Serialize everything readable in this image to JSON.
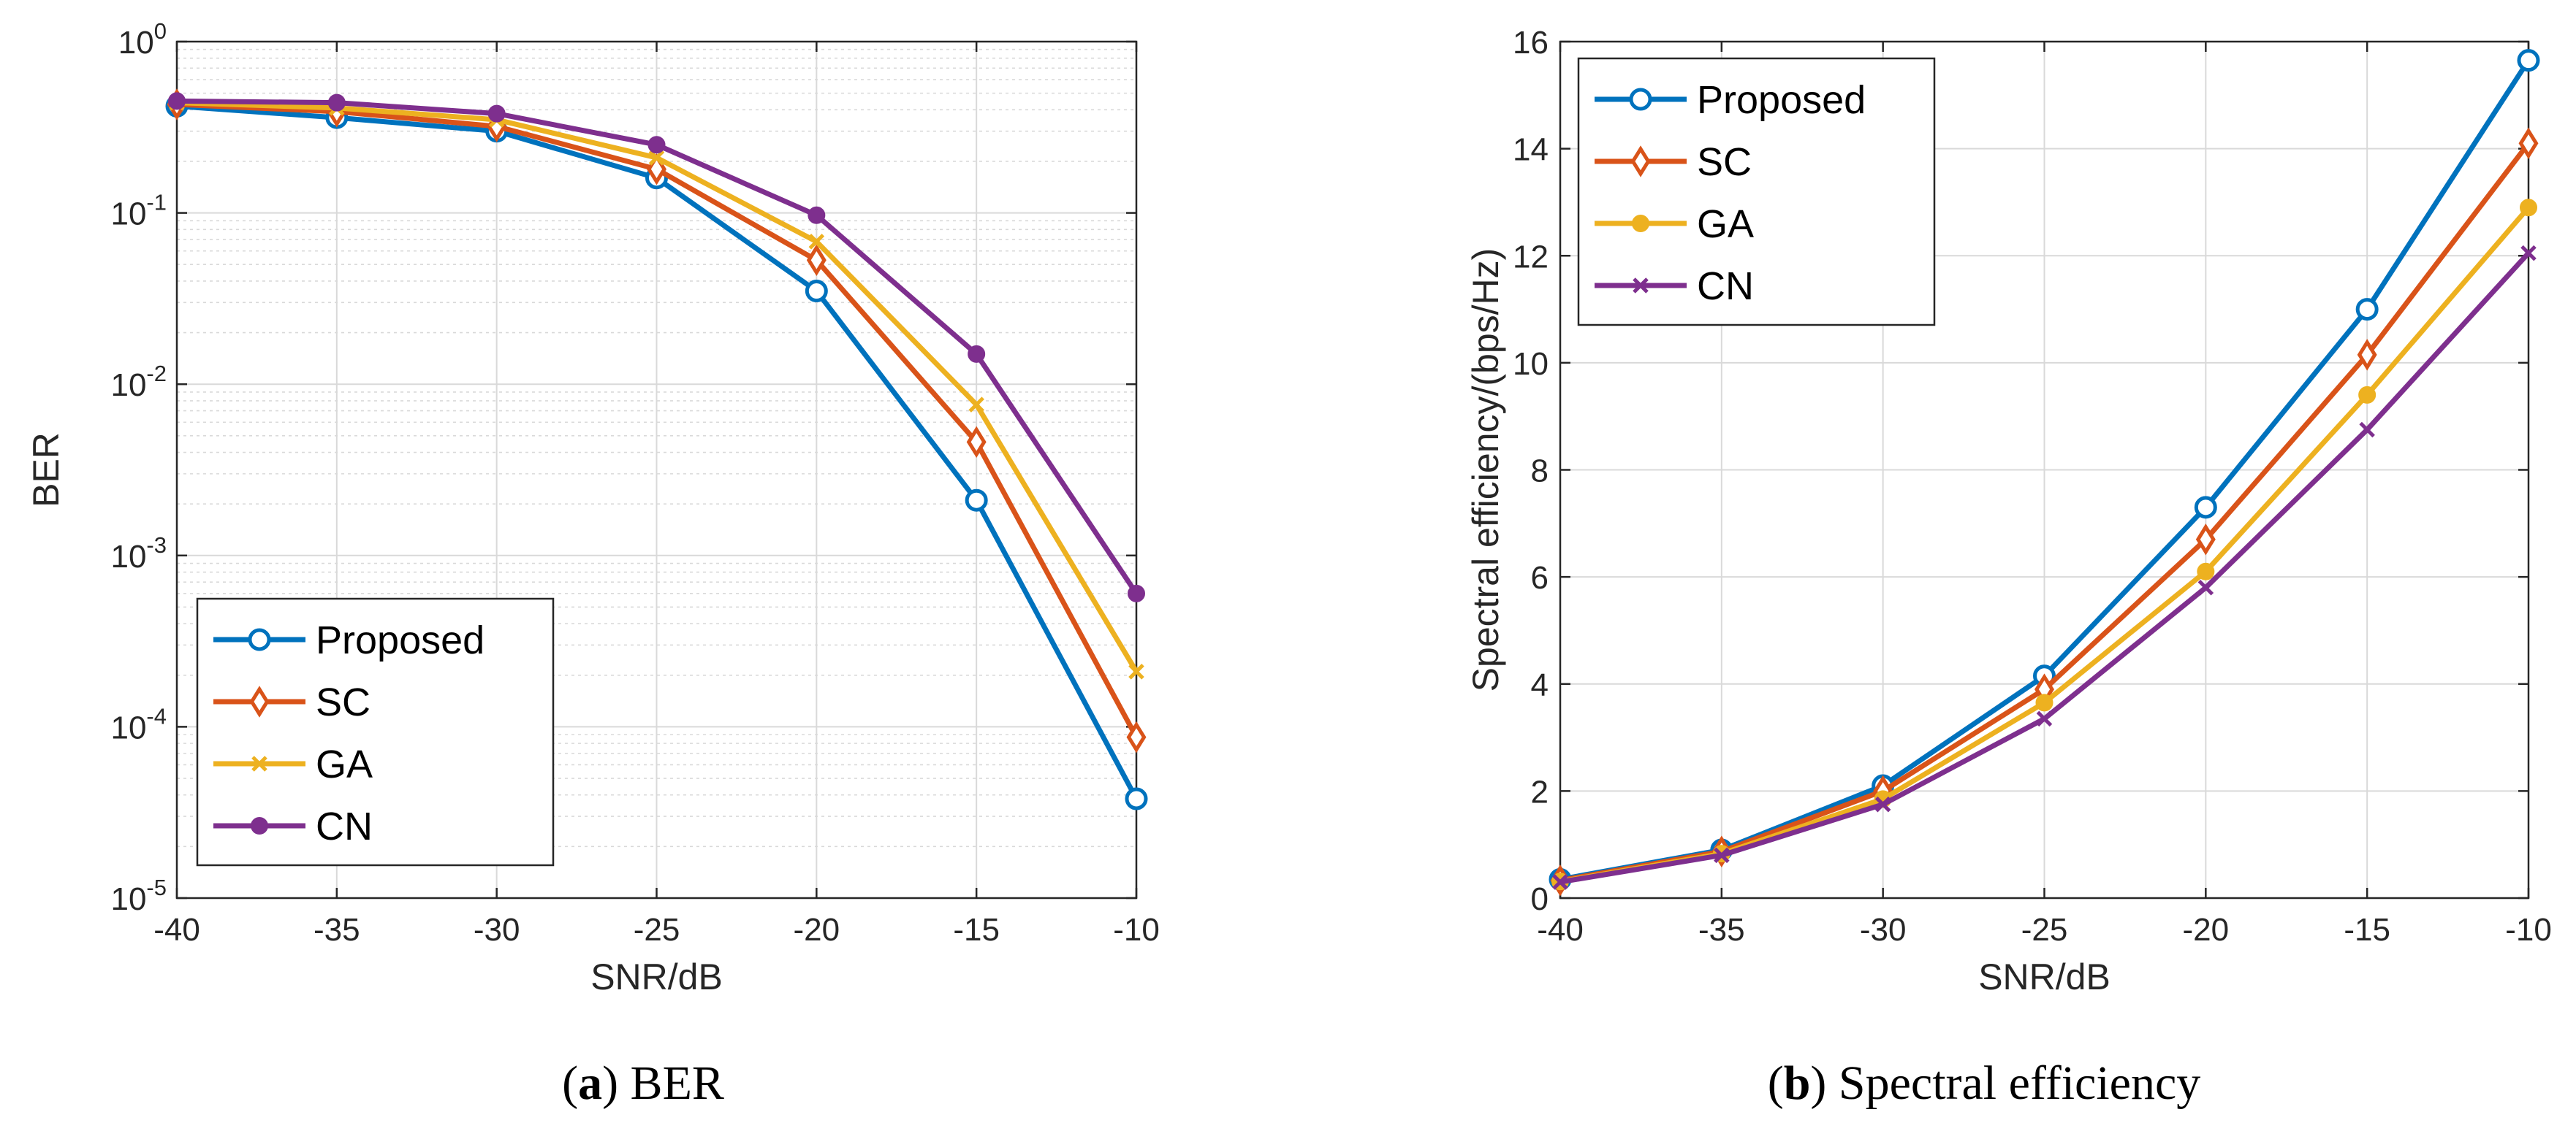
{
  "chart_data": [
    {
      "id": "ber",
      "type": "line",
      "yscale": "log",
      "caption_letter": "a",
      "caption_text": "BER",
      "xlabel": "SNR/dB",
      "ylabel": "BER",
      "xlim": [
        -40,
        -10
      ],
      "ylim_exp": [
        -5,
        0
      ],
      "grid": true,
      "legend_position": "bottom-left",
      "x": [
        -40,
        -35,
        -30,
        -25,
        -20,
        -15,
        -10
      ],
      "xticks": [
        "-40",
        "-35",
        "-30",
        "-25",
        "-20",
        "-15",
        "-10"
      ],
      "yticks": [
        {
          "exp": -5,
          "base": "10",
          "sup": "-5"
        },
        {
          "exp": -4,
          "base": "10",
          "sup": "-4"
        },
        {
          "exp": -3,
          "base": "10",
          "sup": "-3"
        },
        {
          "exp": -2,
          "base": "10",
          "sup": "-2"
        },
        {
          "exp": -1,
          "base": "10",
          "sup": "-1"
        },
        {
          "exp": 0,
          "base": "10",
          "sup": "0"
        }
      ],
      "series": [
        {
          "name": "Proposed",
          "color": "#0072BD",
          "marker": "circle",
          "values": [
            0.42,
            0.36,
            0.3,
            0.16,
            0.035,
            0.0021,
            3.8e-05
          ]
        },
        {
          "name": "SC",
          "color": "#D95319",
          "marker": "diamond",
          "values": [
            0.43,
            0.39,
            0.32,
            0.18,
            0.053,
            0.0046,
            8.7e-05
          ]
        },
        {
          "name": "GA",
          "color": "#EDB120",
          "marker": "x",
          "values": [
            0.44,
            0.41,
            0.35,
            0.21,
            0.068,
            0.0076,
            0.00021
          ]
        },
        {
          "name": "CN",
          "color": "#7E2F8E",
          "marker": "dot",
          "values": [
            0.45,
            0.44,
            0.38,
            0.25,
            0.097,
            0.015,
            0.0006
          ]
        }
      ]
    },
    {
      "id": "se",
      "type": "line",
      "yscale": "linear",
      "caption_letter": "b",
      "caption_text": "Spectral efficiency",
      "xlabel": "SNR/dB",
      "ylabel": "Spectral efficiency/(bps/Hz)",
      "xlim": [
        -40,
        -10
      ],
      "ylim": [
        0,
        16
      ],
      "grid": true,
      "legend_position": "top-left",
      "x": [
        -40,
        -35,
        -30,
        -25,
        -20,
        -15,
        -10
      ],
      "xticks": [
        "-40",
        "-35",
        "-30",
        "-25",
        "-20",
        "-15",
        "-10"
      ],
      "yticks": [
        "0",
        "2",
        "4",
        "6",
        "8",
        "10",
        "12",
        "14",
        "16"
      ],
      "series": [
        {
          "name": "Proposed",
          "color": "#0072BD",
          "marker": "circle",
          "values": [
            0.35,
            0.9,
            2.1,
            4.15,
            7.3,
            11.0,
            15.65
          ]
        },
        {
          "name": "SC",
          "color": "#D95319",
          "marker": "diamond",
          "values": [
            0.33,
            0.87,
            2.0,
            3.9,
            6.7,
            10.15,
            14.1
          ]
        },
        {
          "name": "GA",
          "color": "#EDB120",
          "marker": "dot",
          "values": [
            0.31,
            0.83,
            1.85,
            3.65,
            6.1,
            9.4,
            12.9
          ]
        },
        {
          "name": "CN",
          "color": "#7E2F8E",
          "marker": "x",
          "values": [
            0.3,
            0.8,
            1.75,
            3.35,
            5.8,
            8.75,
            12.05
          ]
        }
      ]
    }
  ]
}
